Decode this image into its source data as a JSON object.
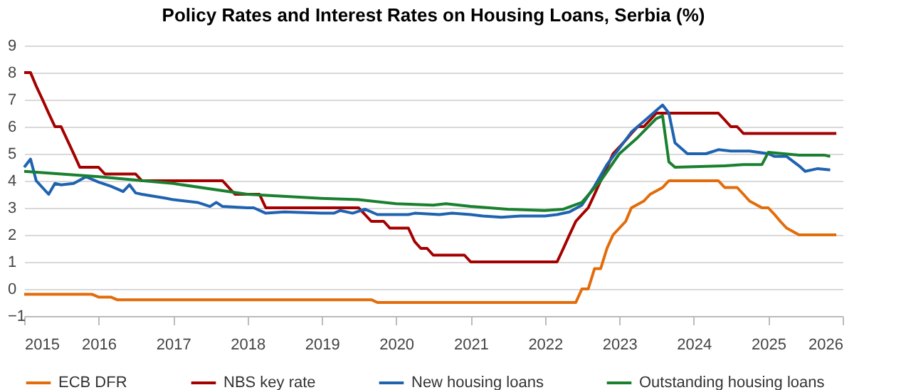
{
  "chart_data": {
    "type": "line",
    "title": "Policy Rates and Interest Rates on Housing Loans, Serbia (%)",
    "xlim": [
      "2015-01",
      "2026-01"
    ],
    "xticks": [
      "2015",
      "2016",
      "2017",
      "2018",
      "2019",
      "2020",
      "2021",
      "2022",
      "2023",
      "2024",
      "2025",
      "2026"
    ],
    "ylim": [
      -1,
      9
    ],
    "yticks": [
      -1,
      0,
      1,
      2,
      3,
      4,
      5,
      6,
      7,
      8,
      9
    ],
    "grid": "y",
    "legend": "bottom",
    "line_style": "solid",
    "marker": "none",
    "series": [
      {
        "name": "ECB DFR",
        "color": "#e36c0a",
        "x": [
          "2015-01",
          "2015-12",
          "2016-01",
          "2016-03",
          "2016-04",
          "2019-09",
          "2019-10",
          "2022-06",
          "2022-07",
          "2022-08",
          "2022-09",
          "2022-10",
          "2022-11",
          "2022-12",
          "2023-02",
          "2023-03",
          "2023-05",
          "2023-06",
          "2023-08",
          "2023-09",
          "2024-05",
          "2024-06",
          "2024-08",
          "2024-09",
          "2024-10",
          "2024-12",
          "2025-01",
          "2025-02",
          "2025-03",
          "2025-04",
          "2025-06",
          "2025-12"
        ],
        "values": [
          -0.2,
          -0.2,
          -0.3,
          -0.3,
          -0.4,
          -0.4,
          -0.5,
          -0.5,
          0,
          0,
          0.75,
          0.75,
          1.5,
          2.0,
          2.5,
          3.0,
          3.25,
          3.5,
          3.75,
          4.0,
          4.0,
          3.75,
          3.75,
          3.5,
          3.25,
          3.0,
          3.0,
          2.75,
          2.5,
          2.25,
          2.0,
          2.0
        ]
      },
      {
        "name": "NBS key rate",
        "color": "#a50000",
        "x": [
          "2015-01",
          "2015-02",
          "2015-03",
          "2015-04",
          "2015-05",
          "2015-06",
          "2015-07",
          "2015-08",
          "2015-09",
          "2015-10",
          "2016-01",
          "2016-02",
          "2016-07",
          "2016-08",
          "2017-09",
          "2017-10",
          "2017-11",
          "2018-03",
          "2018-04",
          "2019-07",
          "2019-08",
          "2019-09",
          "2019-11",
          "2019-12",
          "2020-03",
          "2020-04",
          "2020-05",
          "2020-06",
          "2020-07",
          "2020-12",
          "2021-01",
          "2022-03",
          "2022-04",
          "2022-05",
          "2022-06",
          "2022-07",
          "2022-08",
          "2022-09",
          "2022-10",
          "2022-11",
          "2022-12",
          "2023-01",
          "2023-02",
          "2023-03",
          "2023-04",
          "2023-05",
          "2023-06",
          "2023-07",
          "2024-05",
          "2024-06",
          "2024-07",
          "2024-08",
          "2024-09",
          "2025-12"
        ],
        "values": [
          8.0,
          8.0,
          7.5,
          7.0,
          6.5,
          6.0,
          6.0,
          5.5,
          5.0,
          4.5,
          4.5,
          4.25,
          4.25,
          4.0,
          4.0,
          3.75,
          3.5,
          3.5,
          3.0,
          3.0,
          2.75,
          2.5,
          2.5,
          2.25,
          2.25,
          1.75,
          1.5,
          1.5,
          1.25,
          1.25,
          1.0,
          1.0,
          1.5,
          2.0,
          2.5,
          2.75,
          3.0,
          3.5,
          4.0,
          4.5,
          5.0,
          5.25,
          5.5,
          5.75,
          6.0,
          6.0,
          6.25,
          6.5,
          6.5,
          6.25,
          6.0,
          6.0,
          5.75,
          5.75
        ]
      },
      {
        "name": "New housing loans",
        "color": "#1f63b0",
        "x": [
          "2015-01",
          "2015-02",
          "2015-03",
          "2015-05",
          "2015-06",
          "2015-07",
          "2015-09",
          "2015-11",
          "2016-01",
          "2016-03",
          "2016-05",
          "2016-06",
          "2016-07",
          "2016-08",
          "2016-12",
          "2017-01",
          "2017-05",
          "2017-07",
          "2017-08",
          "2017-09",
          "2018-01",
          "2018-02",
          "2018-04",
          "2018-07",
          "2019-01",
          "2019-03",
          "2019-04",
          "2019-06",
          "2019-08",
          "2019-10",
          "2020-01",
          "2020-03",
          "2020-04",
          "2020-08",
          "2020-10",
          "2021-01",
          "2021-03",
          "2021-06",
          "2021-09",
          "2022-01",
          "2022-03",
          "2022-05",
          "2022-07",
          "2022-09",
          "2022-11",
          "2023-01",
          "2023-03",
          "2023-05",
          "2023-07",
          "2023-08",
          "2023-09",
          "2023-10",
          "2023-12",
          "2024-03",
          "2024-05",
          "2024-07",
          "2024-10",
          "2025-01",
          "2025-02",
          "2025-04",
          "2025-06",
          "2025-07",
          "2025-09",
          "2025-11"
        ],
        "values": [
          4.5,
          4.8,
          4.0,
          3.5,
          3.9,
          3.85,
          3.9,
          4.15,
          3.95,
          3.8,
          3.6,
          3.85,
          3.55,
          3.5,
          3.35,
          3.3,
          3.2,
          3.05,
          3.2,
          3.05,
          3.0,
          3.0,
          2.8,
          2.85,
          2.8,
          2.8,
          2.9,
          2.8,
          2.95,
          2.75,
          2.75,
          2.75,
          2.8,
          2.75,
          2.8,
          2.75,
          2.7,
          2.65,
          2.7,
          2.7,
          2.75,
          2.85,
          3.1,
          3.8,
          4.6,
          5.2,
          5.8,
          6.2,
          6.6,
          6.8,
          6.5,
          5.4,
          5.0,
          5.0,
          5.15,
          5.1,
          5.1,
          5.0,
          4.9,
          4.9,
          4.55,
          4.35,
          4.45,
          4.4
        ]
      },
      {
        "name": "Outstanding housing loans",
        "color": "#1a8030",
        "x": [
          "2015-01",
          "2016-01",
          "2017-01",
          "2018-01",
          "2019-01",
          "2019-07",
          "2020-01",
          "2020-07",
          "2020-09",
          "2021-01",
          "2021-07",
          "2022-01",
          "2022-04",
          "2022-07",
          "2022-10",
          "2023-01",
          "2023-04",
          "2023-07",
          "2023-08",
          "2023-09",
          "2023-10",
          "2024-06",
          "2024-09",
          "2024-12",
          "2025-01",
          "2025-06",
          "2025-10",
          "2025-11"
        ],
        "values": [
          4.35,
          4.15,
          3.9,
          3.5,
          3.35,
          3.3,
          3.15,
          3.1,
          3.15,
          3.05,
          2.95,
          2.9,
          2.95,
          3.2,
          4.0,
          5.0,
          5.6,
          6.3,
          6.4,
          4.7,
          4.5,
          4.55,
          4.6,
          4.6,
          5.05,
          4.95,
          4.95,
          4.9
        ]
      }
    ]
  }
}
